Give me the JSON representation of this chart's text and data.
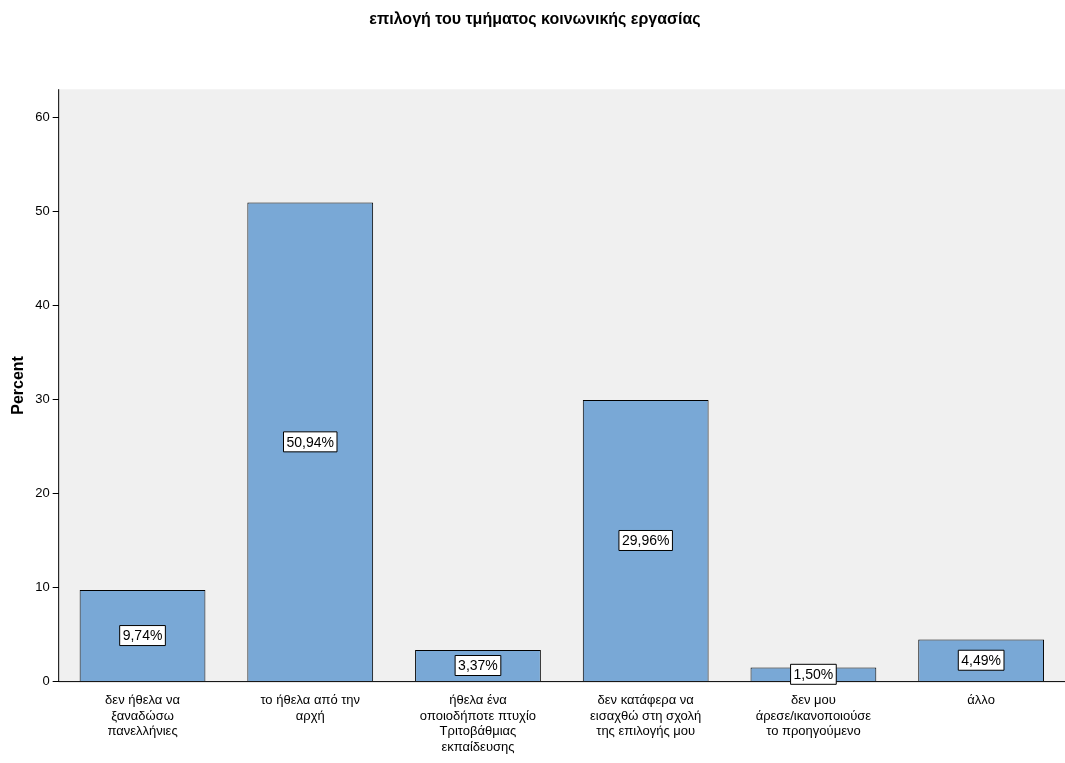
{
  "chart_data": {
    "type": "bar",
    "title": "επιλογή του τμήματος κοινωνικής εργασίας",
    "ylabel": "Percent",
    "categories": [
      "δεν ήθελα να ξαναδώσω πανελλήνιες",
      "το ήθελα από την αρχή",
      "ήθελα ένα οποιοδήποτε πτυχίο Τριτοβάθμιας εκπαίδευσης",
      "δεν κατάφερα να εισαχθώ στη σχολή της επιλογής μου",
      "δεν μου άρεσε/ικανοποιούσε το προηγούμενο",
      "άλλο"
    ],
    "values": [
      9.74,
      50.94,
      3.37,
      29.96,
      1.5,
      4.49
    ],
    "value_labels": [
      "9,74%",
      "50,94%",
      "3,37%",
      "29,96%",
      "1,50%",
      "4,49%"
    ],
    "color": "#79a8d6",
    "ylim": [
      0,
      63
    ],
    "yticks": [
      0,
      10,
      20,
      30,
      40,
      50,
      60
    ],
    "grid": false,
    "legend": false
  }
}
